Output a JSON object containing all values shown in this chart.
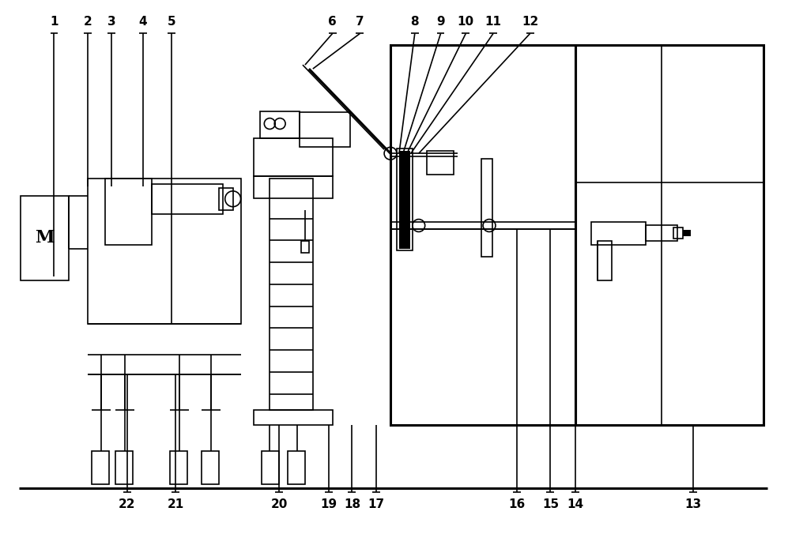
{
  "bg_color": "#ffffff",
  "line_color": "#000000",
  "lw": 1.2,
  "tlw": 2.2,
  "fig_width": 9.97,
  "fig_height": 6.95
}
